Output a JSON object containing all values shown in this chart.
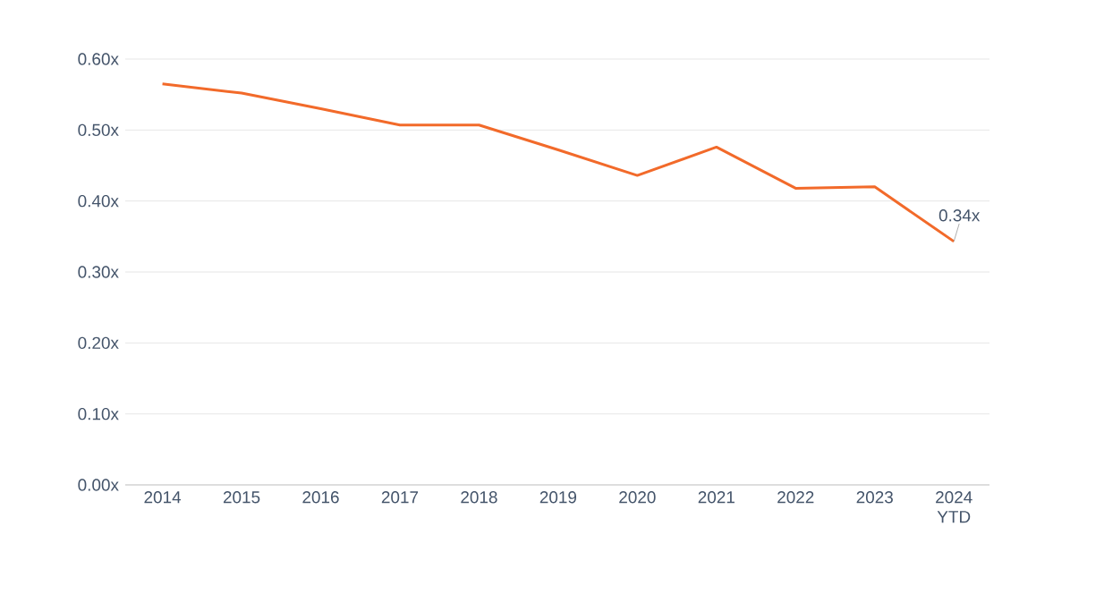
{
  "chart_data": {
    "type": "line",
    "categories": [
      "2014",
      "2015",
      "2016",
      "2017",
      "2018",
      "2019",
      "2020",
      "2021",
      "2022",
      "2023",
      "2024 YTD"
    ],
    "values": [
      0.565,
      0.552,
      0.53,
      0.507,
      0.507,
      0.472,
      0.436,
      0.476,
      0.418,
      0.42,
      0.343
    ],
    "value_labels": [
      null,
      null,
      null,
      null,
      null,
      null,
      null,
      null,
      null,
      null,
      "0.34x"
    ],
    "color": "#f26a2a",
    "ylim": [
      0,
      0.6
    ],
    "yticks": [
      {
        "value": 0,
        "label": "0.00x"
      },
      {
        "value": 0.1,
        "label": "0.10x"
      },
      {
        "value": 0.2,
        "label": "0.20x"
      },
      {
        "value": 0.3,
        "label": "0.30x"
      },
      {
        "value": 0.4,
        "label": "0.40x"
      },
      {
        "value": 0.5,
        "label": "0.50x"
      },
      {
        "value": 0.6,
        "label": "0.60x"
      }
    ],
    "grid": "y",
    "marker": "none",
    "line_style": "solid"
  }
}
